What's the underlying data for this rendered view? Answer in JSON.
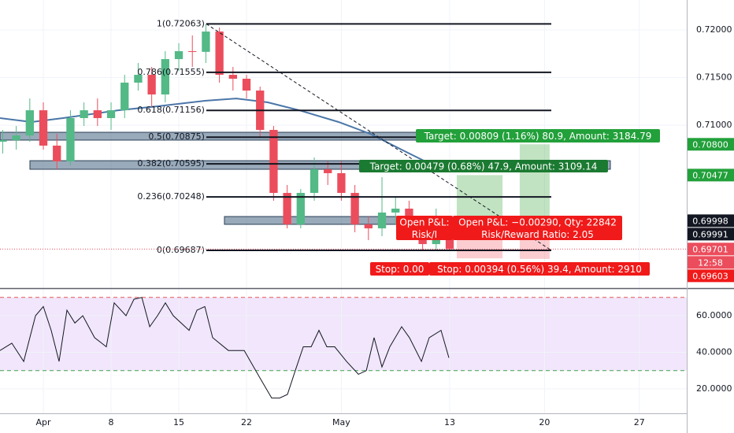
{
  "chart_data": {
    "type": "candlestick",
    "x": [
      -3,
      -2,
      -1,
      0,
      1,
      2,
      3,
      4,
      5,
      6,
      7,
      8,
      9,
      10,
      11,
      12,
      13,
      14,
      15,
      16,
      17,
      18,
      19,
      20,
      21,
      22,
      23,
      24,
      25,
      26,
      27,
      28,
      29,
      30
    ],
    "open": [
      0.70827,
      0.70844,
      0.70893,
      0.71157,
      0.70786,
      0.70621,
      0.71075,
      0.71157,
      0.71075,
      0.71157,
      0.71447,
      0.71529,
      0.71323,
      0.71694,
      0.71777,
      0.7177,
      0.71983,
      0.71529,
      0.71488,
      0.71364,
      0.70951,
      0.7029,
      0.6996,
      0.7029,
      0.70538,
      0.70497,
      0.7029,
      0.6996,
      0.69918,
      0.70084,
      0.70125,
      0.69918,
      0.69753,
      0.69877
    ],
    "high": [
      0.70951,
      0.70992,
      0.71281,
      0.7124,
      0.7091,
      0.71157,
      0.7124,
      0.71281,
      0.7124,
      0.71529,
      0.71653,
      0.71612,
      0.71777,
      0.7186,
      0.71942,
      0.72063,
      0.72025,
      0.71612,
      0.71529,
      0.71405,
      0.70992,
      0.70373,
      0.70331,
      0.70662,
      0.70621,
      0.70621,
      0.70373,
      0.70042,
      0.70455,
      0.70249,
      0.70208,
      0.70001,
      0.70125,
      0.6996
    ],
    "low": [
      0.70703,
      0.70744,
      0.70827,
      0.70744,
      0.70538,
      0.70579,
      0.70992,
      0.70992,
      0.70951,
      0.71075,
      0.71364,
      0.71199,
      0.7124,
      0.7157,
      0.71612,
      0.71653,
      0.71447,
      0.71364,
      0.71281,
      0.70868,
      0.70208,
      0.69918,
      0.69918,
      0.70208,
      0.70373,
      0.70208,
      0.69877,
      0.69795,
      0.69836,
      0.6996,
      0.69836,
      0.69687,
      0.69687,
      0.6969
    ],
    "close": [
      0.70844,
      0.70893,
      0.71157,
      0.70786,
      0.70621,
      0.71075,
      0.71157,
      0.71075,
      0.71157,
      0.71447,
      0.71529,
      0.71323,
      0.71694,
      0.71777,
      0.7177,
      0.71983,
      0.71529,
      0.71488,
      0.71364,
      0.70951,
      0.7029,
      0.6996,
      0.7029,
      0.70538,
      0.70497,
      0.7029,
      0.6996,
      0.69918,
      0.70084,
      0.70125,
      0.69918,
      0.69753,
      0.69877,
      0.69701
    ],
    "up_color": "#53b987",
    "down_color": "#eb4d5c",
    "xlim": [
      -3.2,
      47.5
    ],
    "xticks": [
      {
        "value": 0,
        "label": "Apr"
      },
      {
        "value": 5,
        "label": "8"
      },
      {
        "value": 10,
        "label": "15"
      },
      {
        "value": 15,
        "label": "22"
      },
      {
        "value": 22,
        "label": "May"
      },
      {
        "value": 30,
        "label": "13"
      },
      {
        "value": 37,
        "label": "20"
      },
      {
        "value": 44,
        "label": "27"
      }
    ],
    "ylim": [
      0.69299,
      0.72314
    ],
    "yticks": [
      {
        "value": 0.71,
        "label": "0.71000"
      },
      {
        "value": 0.715,
        "label": "0.71500"
      },
      {
        "value": 0.72,
        "label": "0.72000"
      }
    ],
    "grid": true,
    "moving_average": {
      "color": "#4a76a8",
      "x": [
        -3.2,
        -0.87,
        1.45,
        5.52,
        8.43,
        11.92,
        14.24,
        16.57,
        18.9,
        21.8,
        24.13,
        26.45,
        28.78
      ],
      "values": [
        0.71075,
        0.71034,
        0.71075,
        0.71157,
        0.71199,
        0.71257,
        0.71281,
        0.7124,
        0.71157,
        0.71034,
        0.7091,
        0.70744,
        0.70579
      ]
    },
    "fibonacci": {
      "x": [
        12.03,
        37.5
      ],
      "color": "#131722",
      "levels": [
        {
          "label": "1(0.72063)",
          "value": 0.72063
        },
        {
          "label": "0.786(0.71555)",
          "value": 0.71555
        },
        {
          "label": "0.618(0.71156)",
          "value": 0.71156
        },
        {
          "label": "0.5(0.70875)",
          "value": 0.70875
        },
        {
          "label": "0.382(0.70595)",
          "value": 0.70595
        },
        {
          "label": "0.236(0.70248)",
          "value": 0.70248
        },
        {
          "label": "0(0.69687)",
          "value": 0.69687
        }
      ]
    },
    "trend_line": {
      "x": [
        12.03,
        37.5
      ],
      "values": [
        0.72063,
        0.69687
      ]
    },
    "zones": [
      {
        "x": [
          -3.2,
          27.6
        ],
        "values": [
          0.70926,
          0.70844
        ]
      },
      {
        "x": [
          -0.99,
          41.86
        ],
        "values": [
          0.70628,
          0.70538
        ]
      },
      {
        "x": [
          13.37,
          29.36
        ],
        "values": [
          0.70042,
          0.6996
        ]
      }
    ],
    "positions": [
      {
        "x": [
          30.52,
          33.9
        ],
        "entry": 0.69998,
        "target": 0.70477,
        "stop": 0.69603
      },
      {
        "x": [
          35.17,
          37.38
        ],
        "entry": 0.69991,
        "target": 0.708,
        "stop": 0.69597
      }
    ],
    "position_labels": [
      {
        "lines": [
          "Target: 0.00809 (1.16%) 80.9, Amount: 3184.79"
        ],
        "color": "#22a03a"
      },
      {
        "lines": [
          "Target: 0.00479 (0.68%) 47.9, Amount: 3109.14"
        ],
        "color": "#1b7a31"
      },
      {
        "lines": [
          "Open P&L:",
          "Risk/I"
        ],
        "color": "#f01a1a"
      },
      {
        "lines": [
          "Open P&L: −0.00290, Qty: 22842",
          "Risk/Reward Ratio: 2.05"
        ],
        "color": "#f01a1a"
      },
      {
        "lines": [
          "Stop: 0.00"
        ],
        "color": "#f01a1a"
      },
      {
        "lines": [
          "Stop: 0.00394 (0.56%) 39.4, Amount: 2910"
        ],
        "color": "#f01a1a"
      }
    ],
    "last_price": {
      "value": 0.69701,
      "color": "#eb4d5c"
    },
    "price_tags": [
      {
        "value": 0.708,
        "label": "0.70800",
        "color": "#22a03a"
      },
      {
        "value": 0.70477,
        "label": "0.70477",
        "color": "#22a03a"
      },
      {
        "value": 0.69998,
        "label": "0.69998",
        "color": "#131722"
      },
      {
        "value": 0.69991,
        "label": "0.69991",
        "color": "#131722"
      },
      {
        "value": 0.69701,
        "label": "0.69701",
        "color": "#eb4d5c"
      },
      {
        "value": 0.69603,
        "label": "0.69603",
        "color": "#f01a1a"
      }
    ],
    "countdown": "12:58",
    "rsi": {
      "color": "#131722",
      "x": [
        -3.2,
        -2.33,
        -1.45,
        -0.58,
        0,
        0.58,
        1.16,
        1.74,
        2.33,
        2.91,
        3.78,
        4.65,
        5.23,
        6.1,
        6.69,
        7.27,
        7.85,
        8.43,
        9.01,
        9.59,
        10.76,
        11.34,
        11.92,
        12.5,
        13.66,
        14.83,
        15.99,
        16.86,
        17.44,
        18.02,
        18.6,
        19.19,
        19.77,
        20.35,
        20.93,
        21.51,
        22.38,
        23.26,
        23.84,
        24.42,
        25,
        25.58,
        26.45,
        27.03,
        27.91,
        28.49,
        29.36,
        29.94
      ],
      "values": [
        41,
        45,
        35,
        60,
        65,
        52,
        35,
        63,
        56,
        60,
        48,
        43,
        67,
        60,
        69,
        70,
        54,
        60,
        67,
        60,
        52,
        63,
        65,
        48,
        41,
        41,
        26,
        15,
        15,
        17,
        30,
        43,
        43,
        52,
        43,
        43,
        35,
        28,
        30,
        48,
        32,
        43,
        54,
        48,
        35,
        48,
        52,
        37
      ],
      "ylim": [
        6.67,
        74.2
      ],
      "yticks": [
        {
          "value": 20,
          "label": "20.0000"
        },
        {
          "value": 40,
          "label": "40.0000"
        },
        {
          "value": 60,
          "label": "60.0000"
        }
      ],
      "upper": 70,
      "lower": 30,
      "upper_color": "#e25555",
      "lower_color": "#3fa34d",
      "band_color": "#f1e6fb"
    }
  }
}
